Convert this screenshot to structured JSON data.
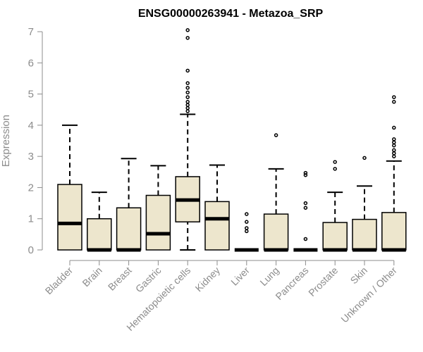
{
  "chart_data": {
    "type": "boxplot",
    "title": "ENSG00000263941 - Metazoa_SRP",
    "xlabel": "",
    "ylabel": "Expression",
    "ylim": [
      0,
      7
    ],
    "yticks": [
      0,
      1,
      2,
      3,
      4,
      5,
      6,
      7
    ],
    "box_fill": "#ede6cd",
    "box_stroke": "#000000",
    "axis_color": "#8c8c8c",
    "categories": [
      "Bladder",
      "Brain",
      "Breast",
      "Gastric",
      "Hematopoietic cells",
      "Kidney",
      "Liver",
      "Lung",
      "Pancreas",
      "Prostate",
      "Skin",
      "Unknown / Other"
    ],
    "boxes": [
      {
        "category": "Bladder",
        "min": 0,
        "q1": 0,
        "median": 0.85,
        "q3": 2.1,
        "max": 4.0,
        "outliers": []
      },
      {
        "category": "Brain",
        "min": 0,
        "q1": 0,
        "median": 0,
        "q3": 1.0,
        "max": 1.85,
        "outliers": []
      },
      {
        "category": "Breast",
        "min": 0,
        "q1": 0,
        "median": 0,
        "q3": 1.35,
        "max": 2.93,
        "outliers": []
      },
      {
        "category": "Gastric",
        "min": 0,
        "q1": 0,
        "median": 0.52,
        "q3": 1.75,
        "max": 2.7,
        "outliers": []
      },
      {
        "category": "Hematopoietic cells",
        "min": 0,
        "q1": 0.9,
        "median": 1.6,
        "q3": 2.35,
        "max": 4.35,
        "outliers": [
          4.45,
          4.55,
          4.65,
          4.75,
          4.9,
          5.05,
          5.2,
          5.35,
          5.75,
          6.8,
          7.05
        ]
      },
      {
        "category": "Kidney",
        "min": 0,
        "q1": 0,
        "median": 1.0,
        "q3": 1.55,
        "max": 2.72,
        "outliers": []
      },
      {
        "category": "Liver",
        "min": 0,
        "q1": 0,
        "median": 0,
        "q3": 0,
        "max": 0,
        "outliers": [
          0.6,
          0.7,
          0.9,
          1.15
        ]
      },
      {
        "category": "Lung",
        "min": 0,
        "q1": 0,
        "median": 0,
        "q3": 1.15,
        "max": 2.6,
        "outliers": [
          3.68
        ]
      },
      {
        "category": "Pancreas",
        "min": 0,
        "q1": 0,
        "median": 0,
        "q3": 0,
        "max": 0,
        "outliers": [
          0.35,
          1.35,
          1.5,
          2.4,
          2.47
        ]
      },
      {
        "category": "Prostate",
        "min": 0,
        "q1": 0,
        "median": 0,
        "q3": 0.88,
        "max": 1.85,
        "outliers": [
          2.6,
          2.82
        ]
      },
      {
        "category": "Skin",
        "min": 0,
        "q1": 0,
        "median": 0,
        "q3": 0.98,
        "max": 2.05,
        "outliers": [
          2.95
        ]
      },
      {
        "category": "Unknown / Other",
        "min": 0,
        "q1": 0,
        "median": 0,
        "q3": 1.2,
        "max": 2.85,
        "outliers": [
          3.0,
          3.1,
          3.2,
          3.35,
          3.45,
          3.55,
          3.92,
          4.75,
          4.9
        ]
      }
    ]
  }
}
